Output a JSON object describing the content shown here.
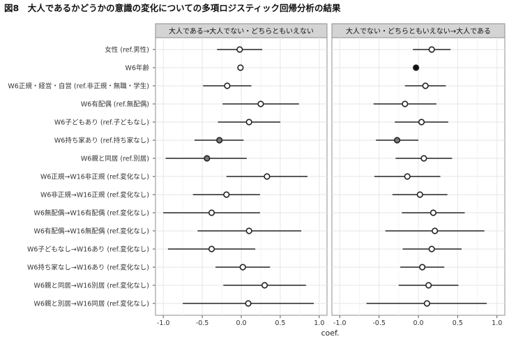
{
  "figure_title": "図8　大人であるかどうかの意識の変化についての多項ロジスティック回帰分析の結果",
  "chart_data": {
    "type": "scatter",
    "subtype": "coefficient-plot-with-confidence-intervals",
    "xlabel": "coef.",
    "xlim": [
      -1.1,
      1.1
    ],
    "x_ticks": [
      "-1.0",
      "-0.5",
      "0.0",
      "0.5",
      "1.0"
    ],
    "grid": true,
    "variables": [
      "女性 (ref.男性)",
      "W6年齢",
      "W6正規・経営・自営 (ref.非正規・無職・学生)",
      "W6有配偶 (ref.無配偶)",
      "W6子どもあり (ref.子どもなし)",
      "W6持ち家あり (ref.持ち家なし)",
      "W6親と同居 (ref.別居)",
      "W6正規→W16非正規 (ref.変化なし)",
      "W6非正規→W16正規 (ref.変化なし)",
      "W6無配偶→W16有配偶 (ref.変化なし)",
      "W6有配偶→W16無配偶 (ref.変化なし)",
      "W6子どもなし→W16あり (ref.変化なし)",
      "W6持ち家なし→W16あり (ref.変化なし)",
      "W6親と同居→W16別居 (ref.変化なし)",
      "W6親と別居→W16同居 (ref.変化なし)"
    ],
    "panels": [
      {
        "title": "大人である→大人でない・どちらともいえない",
        "coef": [
          -0.02,
          -0.01,
          -0.18,
          0.25,
          0.1,
          -0.28,
          -0.44,
          0.33,
          -0.19,
          -0.38,
          0.1,
          -0.38,
          0.02,
          0.3,
          0.09
        ],
        "lower": [
          -0.31,
          -0.02,
          -0.49,
          -0.24,
          -0.3,
          -0.6,
          -0.97,
          -0.19,
          -0.62,
          -1.0,
          -0.56,
          -0.94,
          -0.33,
          -0.23,
          -0.75
        ],
        "upper": [
          0.27,
          0.0,
          0.13,
          0.74,
          0.5,
          0.03,
          0.07,
          0.85,
          0.24,
          0.24,
          0.77,
          0.18,
          0.37,
          0.83,
          0.93
        ],
        "fill": [
          "open",
          "open",
          "open",
          "open",
          "open",
          "mid",
          "mid",
          "open",
          "open",
          "open",
          "open",
          "open",
          "open",
          "open",
          "open"
        ]
      },
      {
        "title": "大人でない・どちらともいえない→大人である",
        "coef": [
          0.17,
          -0.03,
          0.09,
          -0.17,
          0.04,
          -0.27,
          0.07,
          -0.14,
          0.02,
          0.19,
          0.21,
          0.17,
          0.05,
          0.13,
          0.11
        ],
        "lower": [
          -0.07,
          -0.03,
          -0.17,
          -0.57,
          -0.3,
          -0.54,
          -0.29,
          -0.56,
          -0.33,
          -0.21,
          -0.42,
          -0.2,
          -0.23,
          -0.25,
          -0.66
        ],
        "upper": [
          0.41,
          -0.03,
          0.35,
          0.23,
          0.38,
          0.0,
          0.43,
          0.28,
          0.37,
          0.59,
          0.84,
          0.55,
          0.33,
          0.51,
          0.87
        ],
        "fill": [
          "open",
          "dark",
          "open",
          "open",
          "open",
          "mid",
          "open",
          "open",
          "open",
          "open",
          "open",
          "open",
          "open",
          "open",
          "open"
        ]
      }
    ],
    "colors": {
      "open": "#ffffff",
      "mid": "#7a7a7a",
      "dark": "#111111",
      "strip_bg": "#d4d4d4",
      "grid_major": "#e6e6e6",
      "grid_minor": "#f1f1f1",
      "line": "#222222"
    }
  }
}
